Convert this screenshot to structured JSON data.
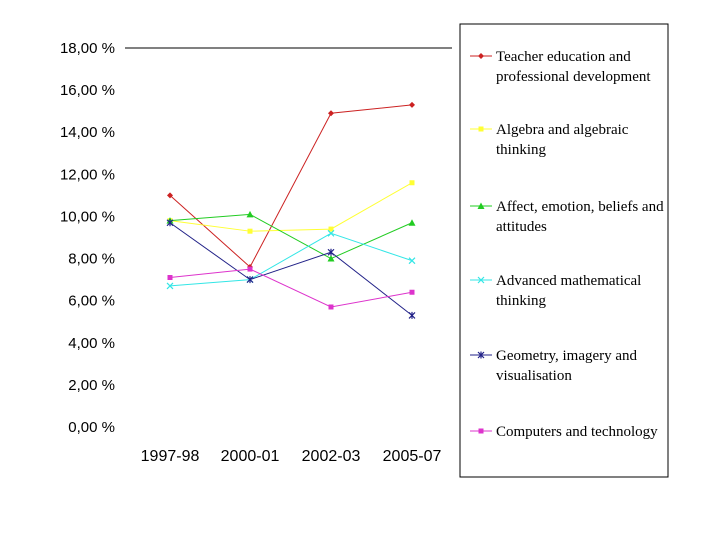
{
  "chart_data": {
    "type": "line",
    "categories": [
      "1997-98",
      "2000-01",
      "2002-03",
      "2005-07"
    ],
    "y_tick_labels": [
      "0,00 %",
      "2,00 %",
      "4,00 %",
      "6,00 %",
      "8,00 %",
      "10,00 %",
      "12,00 %",
      "14,00 %",
      "16,00 %",
      "18,00 %"
    ],
    "ylim": [
      0,
      18
    ],
    "grid": "top line only",
    "legend_position": "right",
    "series": [
      {
        "name": "Teacher education and professional development",
        "name_lines": [
          "Teacher education and",
          "professional development"
        ],
        "color": "#cc2222",
        "marker": "diamond",
        "values": [
          11.0,
          7.6,
          14.9,
          15.3
        ]
      },
      {
        "name": "Algebra and algebraic thinking",
        "name_lines": [
          "Algebra and algebraic",
          "thinking"
        ],
        "color": "#ffff33",
        "marker": "square",
        "values": [
          9.8,
          9.3,
          9.4,
          11.6
        ]
      },
      {
        "name": "Affect, emotion, beliefs and attitudes",
        "name_lines": [
          "Affect, emotion, beliefs and",
          "attitudes"
        ],
        "color": "#22cc22",
        "marker": "triangle",
        "values": [
          9.8,
          10.1,
          8.0,
          9.7
        ]
      },
      {
        "name": "Advanced mathematical thinking",
        "name_lines": [
          "Advanced mathematical",
          "thinking"
        ],
        "color": "#33e6e6",
        "marker": "x",
        "values": [
          6.7,
          7.0,
          9.2,
          7.9
        ]
      },
      {
        "name": "Geometry, imagery and visualisation",
        "name_lines": [
          "Geometry,  imagery and",
          "visualisation"
        ],
        "color": "#222288",
        "marker": "star",
        "values": [
          9.7,
          7.0,
          8.3,
          5.3
        ]
      },
      {
        "name": "Computers and technology",
        "name_lines": [
          "Computers and technology"
        ],
        "color": "#dd33cc",
        "marker": "square",
        "values": [
          7.1,
          7.5,
          5.7,
          6.4
        ]
      }
    ]
  }
}
